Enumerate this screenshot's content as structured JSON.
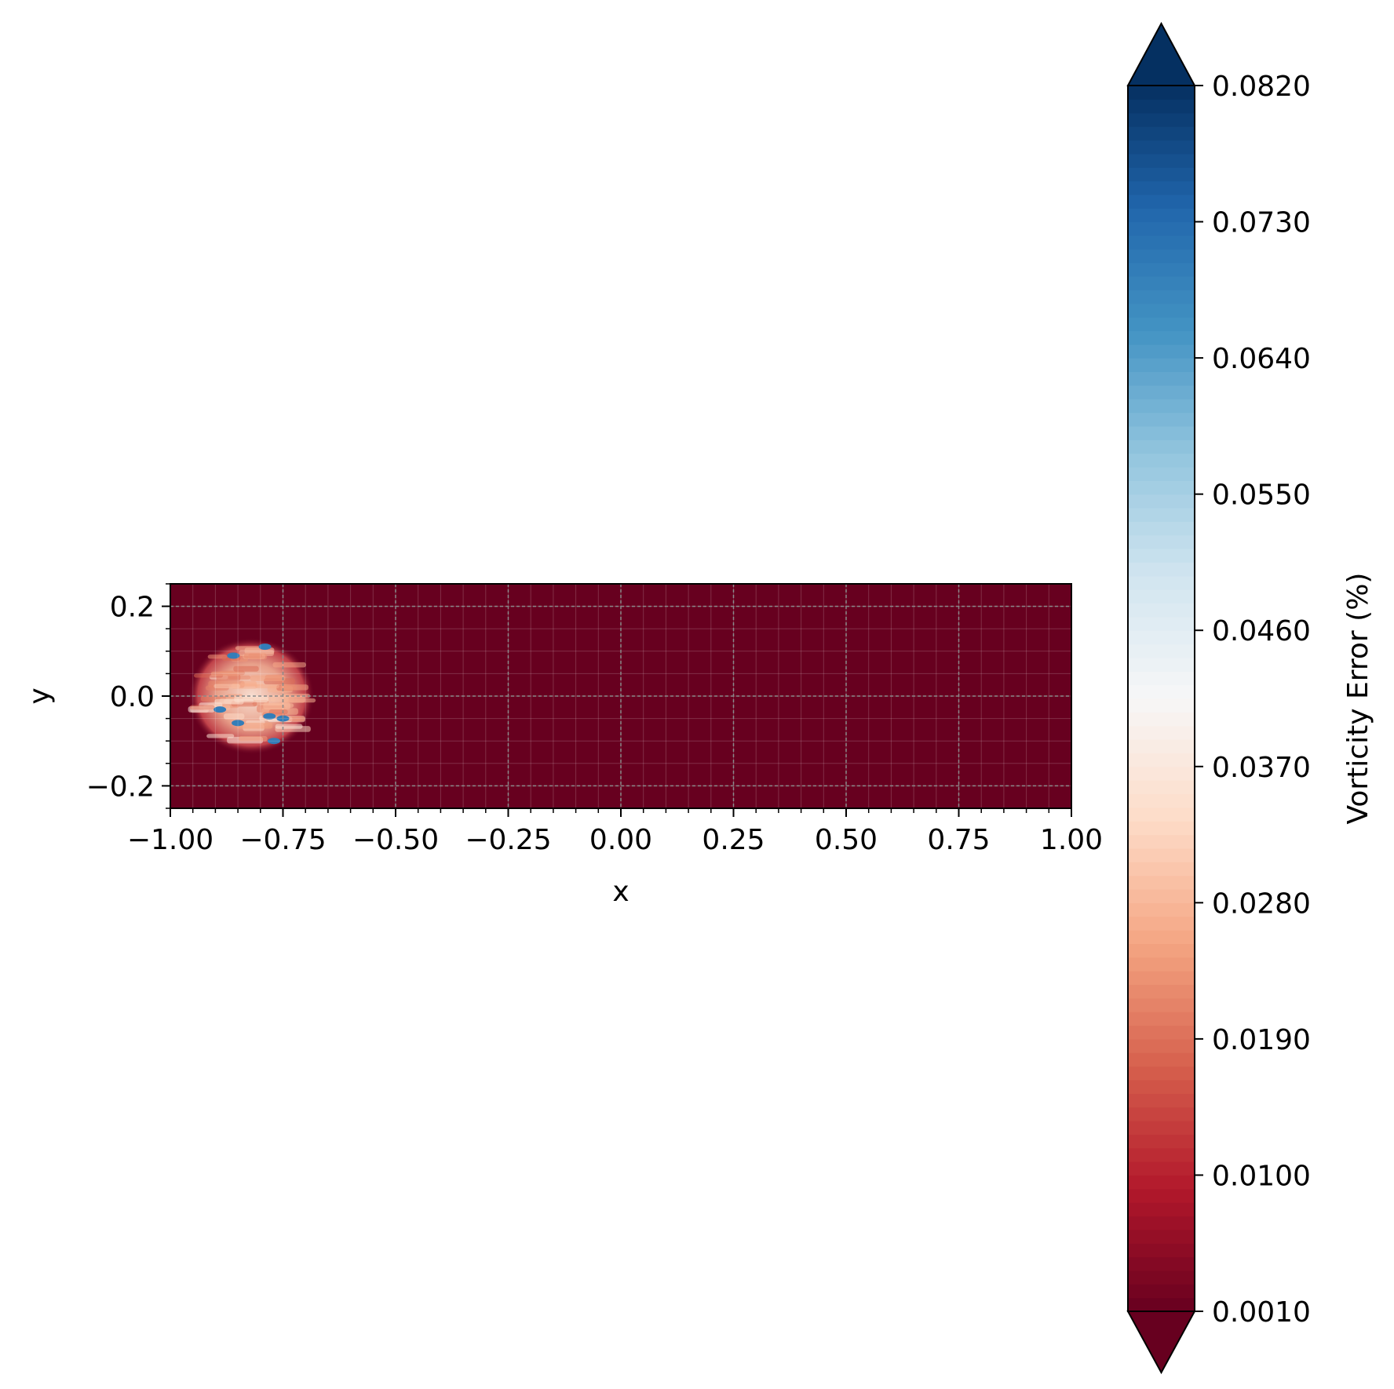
{
  "chart_data": {
    "type": "heatmap",
    "title": "",
    "xlabel": "x",
    "ylabel": "y",
    "xlim": [
      -1.0,
      1.0
    ],
    "ylim": [
      -0.25,
      0.25
    ],
    "x_ticks": [
      "−1.00",
      "−0.75",
      "−0.50",
      "−0.25",
      "0.00",
      "0.25",
      "0.50",
      "0.75",
      "1.00"
    ],
    "x_tick_values": [
      -1.0,
      -0.75,
      -0.5,
      -0.25,
      0.0,
      0.25,
      0.5,
      0.75,
      1.0
    ],
    "y_ticks": [
      "−0.2",
      "0.0",
      "0.2"
    ],
    "y_tick_values": [
      -0.2,
      0.0,
      0.2
    ],
    "grid": true,
    "colormap": "RdBu",
    "background_value": 0.001,
    "colorbar": {
      "label": "Vorticity Error (%)",
      "min": 0.001,
      "max": 0.082,
      "extend": "both",
      "ticks": [
        "0.0010",
        "0.0100",
        "0.0190",
        "0.0280",
        "0.0370",
        "0.0460",
        "0.0550",
        "0.0640",
        "0.0730",
        "0.0820"
      ],
      "tick_values": [
        0.001,
        0.01,
        0.019,
        0.028,
        0.037,
        0.046,
        0.055,
        0.064,
        0.073,
        0.082
      ]
    },
    "error_region": {
      "x_center": -0.82,
      "y_center": 0.0,
      "x_half_width": 0.14,
      "y_half_width": 0.13,
      "peak_value": 0.082,
      "typical_value": 0.03
    }
  }
}
